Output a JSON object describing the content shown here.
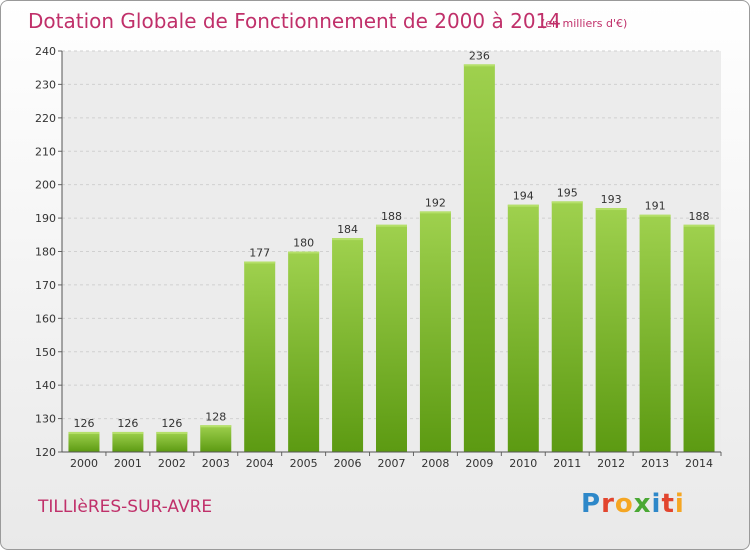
{
  "title": "Dotation Globale de Fonctionnement de 2000 à 2014",
  "subtitle": "(en milliers d'€)",
  "city": "TILLIèRES-SUR-AVRE",
  "logo": {
    "text": "Proxiti"
  },
  "colors": {
    "title": "#c0306a",
    "bar_top": "#9fd14e",
    "bar_bottom": "#5c9a12"
  },
  "chart_data": {
    "type": "bar",
    "categories": [
      "2000",
      "2001",
      "2002",
      "2003",
      "2004",
      "2005",
      "2006",
      "2007",
      "2008",
      "2009",
      "2010",
      "2011",
      "2012",
      "2013",
      "2014"
    ],
    "values": [
      126,
      126,
      126,
      128,
      177,
      180,
      184,
      188,
      192,
      236,
      194,
      195,
      193,
      191,
      188
    ],
    "title": "Dotation Globale de Fonctionnement de 2000 à 2014",
    "subtitle": "(en milliers d'€)",
    "xlabel": "",
    "ylabel": "",
    "ylim": [
      120,
      240
    ],
    "yticks": [
      120,
      130,
      140,
      150,
      160,
      170,
      180,
      190,
      200,
      210,
      220,
      230,
      240
    ],
    "grid": true,
    "legend": "none"
  }
}
